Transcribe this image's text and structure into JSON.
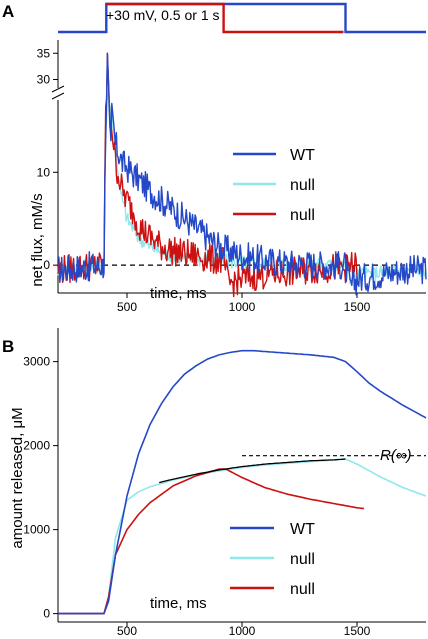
{
  "panels": {
    "a": "A",
    "b": "B"
  },
  "colors": {
    "wt": "#2448c8",
    "null_cyan": "#8ee8ee",
    "null_red": "#cc1111",
    "fit": "#000000"
  },
  "chart_data": [
    {
      "type": "line",
      "panel": "A",
      "title": "",
      "protocol_label": "+30 mV, 0.5 or 1 s",
      "xlabel": "time, ms",
      "ylabel": "net flux, mM/s",
      "xlim": [
        200,
        1800
      ],
      "ylim_lower": [
        -3,
        18
      ],
      "ylim_upper": [
        28,
        36
      ],
      "axis_break": true,
      "x_ticks": [
        500,
        1000,
        1500
      ],
      "y_ticks_lower": [
        0,
        10
      ],
      "y_ticks_upper": [
        30,
        35
      ],
      "zero_line": "dashed",
      "legend": {
        "placement": "right",
        "entries": [
          "WT",
          "null",
          "null"
        ]
      },
      "protocol": [
        {
          "series": "WT",
          "t_on": 410,
          "t_off": 1450,
          "level": "+30 mV"
        },
        {
          "series": "null (red)",
          "t_on": 410,
          "t_off": 920,
          "level": "+30 mV"
        }
      ],
      "series": [
        {
          "name": "WT",
          "color": "#2448c8",
          "x": [
            200,
            400,
            415,
            430,
            450,
            480,
            520,
            560,
            600,
            650,
            700,
            750,
            800,
            850,
            900,
            950,
            1000,
            1100,
            1200,
            1300,
            1400,
            1450,
            1470,
            1500,
            1600,
            1700,
            1800
          ],
          "y": [
            -0.5,
            0,
            35,
            17,
            13,
            11,
            10,
            9,
            8,
            7,
            6,
            5,
            4,
            3,
            2,
            1.5,
            1,
            0.5,
            0.2,
            0.1,
            0,
            0,
            -2.5,
            -1.5,
            -1,
            -0.5,
            -0.5
          ]
        },
        {
          "name": "null",
          "color": "#8ee8ee",
          "x": [
            200,
            400,
            415,
            430,
            445,
            470,
            500,
            550,
            600,
            650,
            700,
            800,
            900,
            1000,
            1100,
            1200,
            1300,
            1400,
            1450,
            1470,
            1500,
            1600,
            1700,
            1800
          ],
          "y": [
            -0.5,
            0,
            30,
            17,
            14,
            8,
            5,
            3,
            2,
            1.5,
            1,
            0.7,
            0.5,
            0.3,
            0.2,
            0.1,
            0,
            0,
            0,
            -1.5,
            -1,
            -0.8,
            -0.5,
            -0.5
          ]
        },
        {
          "name": "null",
          "color": "#cc1111",
          "x": [
            200,
            400,
            415,
            430,
            450,
            480,
            520,
            560,
            600,
            650,
            700,
            800,
            900,
            920,
            940,
            1000,
            1100,
            1200,
            1300,
            1400,
            1450,
            1500
          ],
          "y": [
            -0.5,
            0,
            35,
            16,
            11,
            8,
            6,
            4,
            3,
            2,
            1.5,
            1,
            0.5,
            0.5,
            -2,
            -1.5,
            -1,
            -0.8,
            -0.5,
            -0.3,
            -0.3,
            0
          ]
        }
      ]
    },
    {
      "type": "line",
      "panel": "B",
      "title": "",
      "xlabel": "time, ms",
      "ylabel": "amount released, μM",
      "xlim": [
        200,
        1800
      ],
      "ylim": [
        -100,
        3400
      ],
      "x_ticks": [
        500,
        1000,
        1500
      ],
      "y_ticks": [
        0,
        1000,
        2000,
        3000
      ],
      "annotation": "R(∞)",
      "asymptote": {
        "y": 1880,
        "x_start": 1000,
        "x_end": 1800,
        "style": "dashed"
      },
      "legend": {
        "placement": "bottom-right",
        "entries": [
          "WT",
          "null",
          "null"
        ]
      },
      "series": [
        {
          "name": "WT",
          "color": "#2448c8",
          "x": [
            200,
            400,
            420,
            450,
            500,
            550,
            600,
            650,
            700,
            750,
            800,
            850,
            900,
            950,
            1000,
            1050,
            1100,
            1200,
            1300,
            1400,
            1450,
            1500,
            1550,
            1600,
            1700,
            1800
          ],
          "y": [
            0,
            0,
            150,
            700,
            1400,
            1900,
            2250,
            2500,
            2700,
            2850,
            2950,
            3030,
            3080,
            3110,
            3130,
            3130,
            3120,
            3100,
            3080,
            3050,
            3000,
            2880,
            2750,
            2650,
            2480,
            2330
          ]
        },
        {
          "name": "null",
          "color": "#8ee8ee",
          "x": [
            200,
            400,
            420,
            450,
            500,
            550,
            600,
            700,
            800,
            900,
            1000,
            1100,
            1200,
            1300,
            1400,
            1450,
            1500,
            1600,
            1700,
            1800
          ],
          "y": [
            0,
            0,
            200,
            900,
            1350,
            1450,
            1510,
            1590,
            1650,
            1700,
            1740,
            1770,
            1790,
            1810,
            1830,
            1840,
            1780,
            1630,
            1500,
            1400
          ]
        },
        {
          "name": "null",
          "color": "#cc1111",
          "x": [
            200,
            400,
            420,
            450,
            500,
            550,
            600,
            700,
            800,
            900,
            930,
            1000,
            1100,
            1200,
            1300,
            1400,
            1500,
            1530
          ],
          "y": [
            0,
            0,
            200,
            700,
            1000,
            1180,
            1320,
            1520,
            1640,
            1720,
            1720,
            1620,
            1500,
            1420,
            1360,
            1310,
            1260,
            1250
          ]
        },
        {
          "name": "",
          "color": "#000000",
          "x": [
            640,
            700,
            800,
            900,
            1000,
            1100,
            1200,
            1300,
            1400,
            1450
          ],
          "y": [
            1560,
            1600,
            1660,
            1710,
            1750,
            1780,
            1800,
            1820,
            1830,
            1840
          ]
        }
      ]
    }
  ]
}
